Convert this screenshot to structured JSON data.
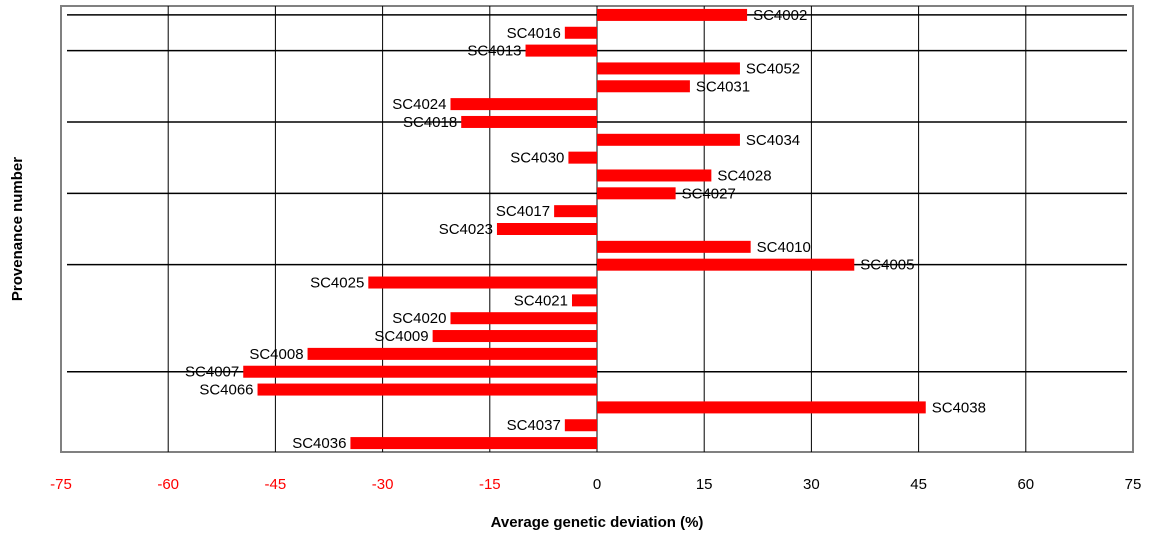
{
  "chart_data": {
    "type": "bar",
    "orientation": "horizontal",
    "xlabel": "Average genetic deviation (%)",
    "ylabel": "Provenance number",
    "xlim": [
      -75,
      75
    ],
    "xticks": [
      -75,
      -60,
      -45,
      -30,
      -15,
      0,
      15,
      30,
      45,
      60,
      75
    ],
    "grid": "vertical",
    "bar_color": "#ff0000",
    "negative_tick_color": "#ff0000",
    "group_separators_after_rows": [
      0,
      2,
      6,
      10,
      14,
      20
    ],
    "categories": [
      "SC4002",
      "SC4016",
      "SC4013",
      "SC4052",
      "SC4031",
      "SC4024",
      "SC4018",
      "SC4034",
      "SC4030",
      "SC4028",
      "SC4027",
      "SC4017",
      "SC4023",
      "SC4010",
      "SC4005",
      "SC4025",
      "SC4021",
      "SC4020",
      "SC4009",
      "SC4008",
      "SC4007",
      "SC4066",
      "SC4038",
      "SC4037",
      "SC4036"
    ],
    "values": [
      21,
      -4.5,
      -10,
      20,
      13,
      -20.5,
      -19,
      20,
      -4,
      16,
      11,
      -6,
      -14,
      21.5,
      36,
      -32,
      -3.5,
      -20.5,
      -23,
      -40.5,
      -49.5,
      -47.5,
      46,
      -4.5,
      -34.5
    ]
  }
}
